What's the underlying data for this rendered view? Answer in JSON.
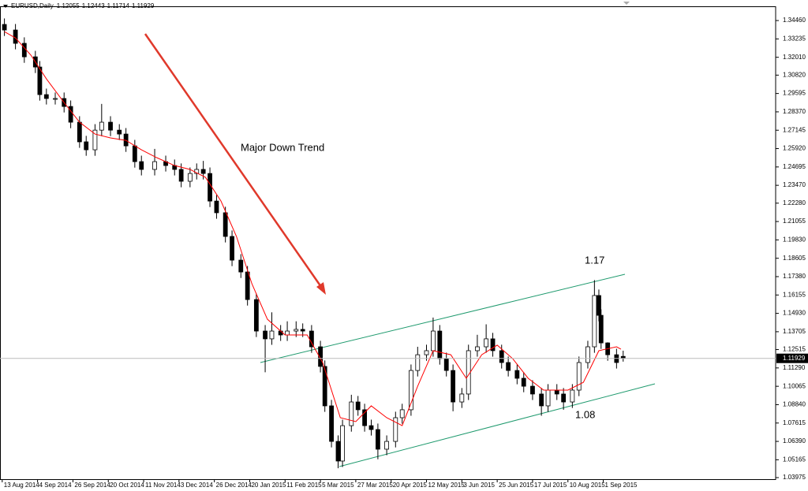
{
  "chart_data": {
    "type": "candlestick",
    "symbol": "EURUSD,Daily",
    "header_values": [
      1.12055,
      1.12443,
      1.11714,
      1.11929
    ],
    "current_price": 1.11929,
    "color_up": "#ffffff",
    "color_down": "#000000",
    "x": [
      1,
      6,
      10,
      15,
      17,
      20,
      24,
      28,
      31,
      35,
      38,
      42,
      45,
      49,
      53,
      56,
      60,
      63,
      69,
      74,
      78,
      81,
      85,
      88,
      91,
      94,
      97,
      101,
      104,
      108,
      111,
      115,
      119,
      122,
      126,
      129,
      133,
      136,
      140,
      144,
      146,
      149,
      152,
      154,
      158,
      161,
      164,
      167,
      170,
      174,
      178,
      181,
      185,
      188,
      192,
      195,
      198,
      201,
      204,
      208,
      211,
      215,
      219,
      222,
      226,
      229,
      233,
      236,
      240,
      244,
      247,
      251,
      254,
      258,
      261,
      265,
      268,
      270,
      271,
      274,
      278,
      281
    ],
    "open": [
      1.342,
      1.3383,
      1.3294,
      1.3204,
      1.3136,
      1.2952,
      1.2926,
      1.2926,
      1.2873,
      1.2768,
      1.2637,
      1.2584,
      1.2715,
      1.2768,
      1.2715,
      1.2689,
      1.261,
      1.2505,
      1.2453,
      1.2505,
      1.2479,
      1.2453,
      1.2374,
      1.2426,
      1.2453,
      1.2426,
      1.2242,
      1.2164,
      1.2006,
      1.1848,
      1.1769,
      1.1585,
      1.1375,
      1.1323,
      1.1375,
      1.1349,
      1.1375,
      1.1386,
      1.1375,
      1.127,
      1.1139,
      1.0876,
      1.0639,
      1.0508,
      1.0744,
      1.0902,
      1.085,
      1.0744,
      1.0718,
      1.0587,
      1.0639,
      1.0797,
      1.085,
      1.1112,
      1.1217,
      1.1244,
      1.1375,
      1.1191,
      1.1112,
      1.0902,
      1.0955,
      1.1244,
      1.127,
      1.1323,
      1.1244,
      1.1165,
      1.1112,
      1.106,
      1.1007,
      1.0955,
      1.0876,
      1.0981,
      1.0955,
      1.0902,
      1.0981,
      1.1165,
      1.127,
      1.1612,
      1.148,
      1.1296,
      1.1217,
      1.1206
    ],
    "high": [
      1.346,
      1.3423,
      1.3334,
      1.3244,
      1.3176,
      1.2992,
      1.2966,
      1.2966,
      1.2913,
      1.2808,
      1.2677,
      1.2755,
      1.289,
      1.2808,
      1.2755,
      1.2729,
      1.265,
      1.2545,
      1.259,
      1.2545,
      1.2519,
      1.2493,
      1.2466,
      1.2493,
      1.251,
      1.2466,
      1.2282,
      1.2204,
      1.2046,
      1.1888,
      1.1809,
      1.1625,
      1.1415,
      1.15,
      1.1415,
      1.144,
      1.144,
      1.1426,
      1.1415,
      1.131,
      1.1179,
      1.0916,
      1.0679,
      1.0784,
      1.095,
      1.0942,
      1.089,
      1.0784,
      1.0758,
      1.0679,
      1.0837,
      1.089,
      1.1152,
      1.127,
      1.1284,
      1.1465,
      1.1415,
      1.1231,
      1.1152,
      1.0995,
      1.1284,
      1.135,
      1.142,
      1.1363,
      1.1284,
      1.1205,
      1.1152,
      1.11,
      1.1047,
      1.0995,
      1.1021,
      1.1021,
      1.0995,
      1.1021,
      1.1205,
      1.131,
      1.1715,
      1.1652,
      1.152,
      1.13,
      1.1257,
      1.1244
    ],
    "low": [
      1.3343,
      1.3254,
      1.3164,
      1.3096,
      1.2912,
      1.2886,
      1.2886,
      1.2833,
      1.2728,
      1.2597,
      1.2544,
      1.2544,
      1.2675,
      1.2675,
      1.2649,
      1.257,
      1.2465,
      1.2413,
      1.2413,
      1.2439,
      1.2413,
      1.2334,
      1.2334,
      1.2386,
      1.2386,
      1.2202,
      1.2124,
      1.1966,
      1.1808,
      1.1729,
      1.1545,
      1.1335,
      1.11,
      1.1283,
      1.1309,
      1.1309,
      1.1335,
      1.1335,
      1.123,
      1.1099,
      1.0836,
      1.0599,
      1.046,
      1.0468,
      1.0704,
      1.081,
      1.0704,
      1.0678,
      1.052,
      1.0547,
      1.0599,
      1.0757,
      1.081,
      1.1072,
      1.1177,
      1.1204,
      1.1151,
      1.1072,
      1.084,
      1.0862,
      1.0915,
      1.1204,
      1.123,
      1.1204,
      1.1125,
      1.1072,
      1.102,
      1.0967,
      1.0915,
      1.081,
      1.0836,
      1.0915,
      1.085,
      1.0862,
      1.0941,
      1.1125,
      1.123,
      1.144,
      1.1256,
      1.1177,
      1.1125,
      1.1171
    ],
    "close": [
      1.3383,
      1.3294,
      1.3204,
      1.3136,
      1.2952,
      1.2926,
      1.2926,
      1.2873,
      1.2768,
      1.2637,
      1.2584,
      1.2715,
      1.2768,
      1.2715,
      1.2689,
      1.261,
      1.2505,
      1.2453,
      1.2505,
      1.2479,
      1.2453,
      1.2374,
      1.2426,
      1.2453,
      1.2426,
      1.2242,
      1.2164,
      1.2006,
      1.1848,
      1.1769,
      1.1585,
      1.1375,
      1.1323,
      1.1375,
      1.1349,
      1.1375,
      1.1386,
      1.1375,
      1.127,
      1.1139,
      1.0876,
      1.0639,
      1.0508,
      1.0744,
      1.0902,
      1.085,
      1.0744,
      1.0718,
      1.0587,
      1.0639,
      1.0797,
      1.085,
      1.1112,
      1.1217,
      1.1244,
      1.1375,
      1.1191,
      1.1112,
      1.0902,
      1.0955,
      1.1244,
      1.127,
      1.1323,
      1.1244,
      1.1165,
      1.1112,
      1.106,
      1.1007,
      1.0955,
      1.0876,
      1.0981,
      1.0955,
      1.0902,
      1.0981,
      1.1165,
      1.127,
      1.1612,
      1.148,
      1.1296,
      1.1217,
      1.1165,
      1.1193
    ],
    "ma": {
      "color": "#ff0000",
      "x": [
        1,
        6,
        13,
        20,
        28,
        35,
        42,
        49,
        56,
        63,
        70,
        78,
        85,
        92,
        99,
        106,
        113,
        120,
        128,
        138,
        145,
        153,
        160,
        167,
        174,
        181,
        188,
        195,
        203,
        210,
        217,
        224,
        231,
        238,
        245,
        256,
        263,
        270,
        278,
        280
      ],
      "values": [
        1.3372,
        1.333,
        1.3215,
        1.3057,
        1.2899,
        1.2768,
        1.2689,
        1.2663,
        1.2647,
        1.2584,
        1.2531,
        1.2479,
        1.2453,
        1.24,
        1.2242,
        1.2006,
        1.169,
        1.1454,
        1.1349,
        1.1349,
        1.1165,
        1.0797,
        1.0771,
        1.0876,
        1.0797,
        1.0744,
        1.1007,
        1.1244,
        1.1217,
        1.106,
        1.1217,
        1.1281,
        1.1191,
        1.106,
        1.0981,
        1.0981,
        1.1033,
        1.1244,
        1.127,
        1.1254
      ]
    },
    "xlim": [
      -1,
      350
    ],
    "ylim": [
      1.0387,
      1.3541
    ],
    "yticks": [
      {
        "value": 1.3446,
        "label": "1.34460"
      },
      1.33235,
      {
        "value": 1.3201,
        "label": "1.32010"
      },
      {
        "value": 1.3082,
        "label": "1.30820"
      },
      1.29595,
      {
        "value": 1.2837,
        "label": "1.28370"
      },
      1.27145,
      {
        "value": 1.2592,
        "label": "1.25920"
      },
      1.24695,
      {
        "value": 1.2347,
        "label": "1.23470"
      },
      {
        "value": 1.2228,
        "label": "1.22280"
      },
      1.21055,
      {
        "value": 1.1983,
        "label": "1.19830"
      },
      1.18605,
      {
        "value": 1.1738,
        "label": "1.17380"
      },
      1.16155,
      {
        "value": 1.1493,
        "label": "1.14930"
      },
      1.13705,
      1.12515,
      {
        "value": 1.1129,
        "label": "1.11290"
      },
      1.10065,
      {
        "value": 1.0884,
        "label": "1.08840"
      },
      1.07615,
      {
        "value": 1.0639,
        "label": "1.06390"
      },
      1.05165,
      1.03975
    ],
    "xticks": [
      {
        "value": 0,
        "label": "13 Aug 2014"
      },
      {
        "value": 16,
        "label": "4 Sep 2014"
      },
      {
        "value": 32,
        "label": "26 Sep 2014"
      },
      {
        "value": 48,
        "label": "20 Oct 2014"
      },
      {
        "value": 64,
        "label": "11 Nov 2014"
      },
      {
        "value": 80,
        "label": "3 Dec 2014"
      },
      {
        "value": 96,
        "label": "26 Dec 2014"
      },
      {
        "value": 112,
        "label": "20 Jan 2015"
      },
      {
        "value": 128,
        "label": "11 Feb 2015"
      },
      {
        "value": 144,
        "label": "5 Mar 2015"
      },
      {
        "value": 160,
        "label": "27 Mar 2015"
      },
      {
        "value": 176,
        "label": "20 Apr 2015"
      },
      {
        "value": 192,
        "label": "12 May 2015"
      },
      {
        "value": 208,
        "label": "3 Jun 2015"
      },
      {
        "value": 224,
        "label": "25 Jun 2015"
      },
      {
        "value": 240,
        "label": "17 Jul 2015"
      },
      {
        "value": 256,
        "label": "10 Aug 2015"
      },
      {
        "value": 272,
        "label": "1 Sep 2015"
      }
    ],
    "annotations": [
      "Major Down Trend",
      "1.17",
      "1.08"
    ]
  }
}
